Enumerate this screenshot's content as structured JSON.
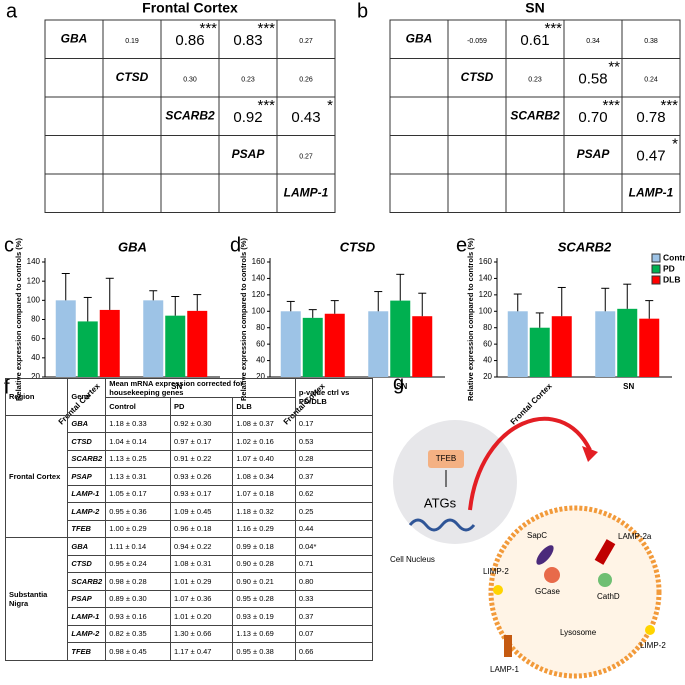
{
  "panels": {
    "a": "a",
    "b": "b",
    "c": "c",
    "d": "d",
    "e": "e",
    "f": "f",
    "g": "g"
  },
  "matrices": [
    {
      "title": "Frontal Cortex",
      "genes": [
        "GBA",
        "CTSD",
        "SCARB2",
        "PSAP",
        "LAMP-1"
      ],
      "cells": [
        [
          {
            "r": "0.19"
          },
          {
            "r": "0.86",
            "stars": "***"
          },
          {
            "r": "0.83",
            "stars": "***"
          },
          {
            "r": "0.27"
          }
        ],
        [
          {
            "r": "0.30"
          },
          {
            "r": "0.23"
          },
          {
            "r": "0.26"
          }
        ],
        [
          {
            "r": "0.92",
            "stars": "***"
          },
          {
            "r": "0.43",
            "stars": "*"
          }
        ],
        [
          {
            "r": "0.27"
          }
        ]
      ]
    },
    {
      "title": "SN",
      "genes": [
        "GBA",
        "CTSD",
        "SCARB2",
        "PSAP",
        "LAMP-1"
      ],
      "cells": [
        [
          {
            "r": "-0.059"
          },
          {
            "r": "0.61",
            "stars": "***"
          },
          {
            "r": "0.34"
          },
          {
            "r": "0.38"
          }
        ],
        [
          {
            "r": "0.23"
          },
          {
            "r": "0.58",
            "stars": "**"
          },
          {
            "r": "0.24"
          }
        ],
        [
          {
            "r": "0.70",
            "stars": "***"
          },
          {
            "r": "0.78",
            "stars": "***"
          }
        ],
        [
          {
            "r": "0.47",
            "stars": "*"
          }
        ]
      ]
    }
  ],
  "chart_data": [
    {
      "type": "bar",
      "title": "GBA",
      "ylabel": "Relative expression compared to controls (%)",
      "categories": [
        "Frontal Cortex",
        "SN"
      ],
      "series": [
        {
          "color": "#9dc3e6",
          "values": [
            100,
            100
          ],
          "errors": [
            28,
            10
          ]
        },
        {
          "color": "#00b050",
          "values": [
            78,
            84
          ],
          "errors": [
            25,
            20
          ]
        },
        {
          "color": "#ff0000",
          "values": [
            90,
            89
          ],
          "errors": [
            33,
            17
          ]
        }
      ],
      "ylim": [
        20,
        140
      ],
      "yticks": [
        20,
        40,
        60,
        80,
        100,
        120,
        140
      ]
    },
    {
      "type": "bar",
      "title": "CTSD",
      "ylabel": "Relative expression compared to controls (%)",
      "categories": [
        "Frontal Cortex",
        "SN"
      ],
      "series": [
        {
          "color": "#9dc3e6",
          "values": [
            100,
            100
          ],
          "errors": [
            12,
            24
          ]
        },
        {
          "color": "#00b050",
          "values": [
            92,
            113
          ],
          "errors": [
            10,
            32
          ]
        },
        {
          "color": "#ff0000",
          "values": [
            97,
            94
          ],
          "errors": [
            16,
            28
          ]
        }
      ],
      "ylim": [
        20,
        160
      ],
      "yticks": [
        20,
        40,
        60,
        80,
        100,
        120,
        140,
        160
      ]
    },
    {
      "type": "bar",
      "title": "SCARB2",
      "ylabel": "Relative expression compared to controls (%)",
      "categories": [
        "Frontal Cortex",
        "SN"
      ],
      "series": [
        {
          "name": "Control",
          "color": "#9dc3e6",
          "values": [
            100,
            100
          ],
          "errors": [
            21,
            28
          ]
        },
        {
          "name": "PD",
          "color": "#00b050",
          "values": [
            80,
            103
          ],
          "errors": [
            18,
            30
          ]
        },
        {
          "name": "DLB",
          "color": "#ff0000",
          "values": [
            94,
            91
          ],
          "errors": [
            35,
            22
          ]
        }
      ],
      "ylim": [
        20,
        160
      ],
      "yticks": [
        20,
        40,
        60,
        80,
        100,
        120,
        140,
        160
      ],
      "legend": "upper right"
    }
  ],
  "table": {
    "header": [
      "Region",
      "Gene",
      "Mean mRNA expression corrected for housekeeping genes",
      "p-value ctrl vs PD/DLB"
    ],
    "subheader": [
      "Control",
      "PD",
      "DLB"
    ],
    "groups": [
      {
        "region": "Frontal Cortex",
        "rows": [
          [
            "GBA",
            "1.18 ± 0.33",
            "0.92 ± 0.30",
            "1.08 ± 0.37",
            "0.17"
          ],
          [
            "CTSD",
            "1.04 ± 0.14",
            "0.97 ± 0.17",
            "1.02 ± 0.16",
            "0.53"
          ],
          [
            "SCARB2",
            "1.13 ± 0.25",
            "0.91 ± 0.22",
            "1.07 ± 0.40",
            "0.28"
          ],
          [
            "PSAP",
            "1.13 ± 0.31",
            "0.93 ± 0.26",
            "1.08 ± 0.34",
            "0.37"
          ],
          [
            "LAMP-1",
            "1.05 ± 0.17",
            "0.93 ± 0.17",
            "1.07 ± 0.18",
            "0.62"
          ],
          [
            "LAMP-2",
            "0.95 ± 0.36",
            "1.09 ± 0.45",
            "1.18 ± 0.32",
            "0.25"
          ],
          [
            "TFEB",
            "1.00 ± 0.29",
            "0.96 ± 0.18",
            "1.16 ± 0.29",
            "0.44"
          ]
        ]
      },
      {
        "region": "Substantia Nigra",
        "rows": [
          [
            "GBA",
            "1.11 ± 0.14",
            "0.94 ± 0.22",
            "0.99 ± 0.18",
            "0.04*"
          ],
          [
            "CTSD",
            "0.95 ± 0.24",
            "1.08 ± 0.31",
            "0.90 ± 0.28",
            "0.71"
          ],
          [
            "SCARB2",
            "0.98 ± 0.28",
            "1.01 ± 0.29",
            "0.90 ± 0.21",
            "0.80"
          ],
          [
            "PSAP",
            "0.89 ± 0.30",
            "1.07 ± 0.36",
            "0.95 ± 0.28",
            "0.33"
          ],
          [
            "LAMP-1",
            "0.93 ± 0.16",
            "1.01 ± 0.20",
            "0.93 ± 0.19",
            "0.37"
          ],
          [
            "LAMP-2",
            "0.82 ± 0.35",
            "1.30 ± 0.66",
            "1.13 ± 0.69",
            "0.07"
          ],
          [
            "TFEB",
            "0.98 ± 0.45",
            "1.17 ± 0.47",
            "0.95 ± 0.38",
            "0.66"
          ]
        ]
      }
    ]
  },
  "diagram": {
    "tfeb": "TFEB",
    "atgs": "ATGs",
    "nucleus": "Cell Nucleus",
    "sapc": "SapC",
    "lamp2a": "LAMP-2a",
    "limp2a": "LIMP-2",
    "gcase": "GCase",
    "cathd": "CathD",
    "lysosome": "Lysosome",
    "limp2b": "LIMP-2",
    "lamp1": "LAMP-1"
  }
}
